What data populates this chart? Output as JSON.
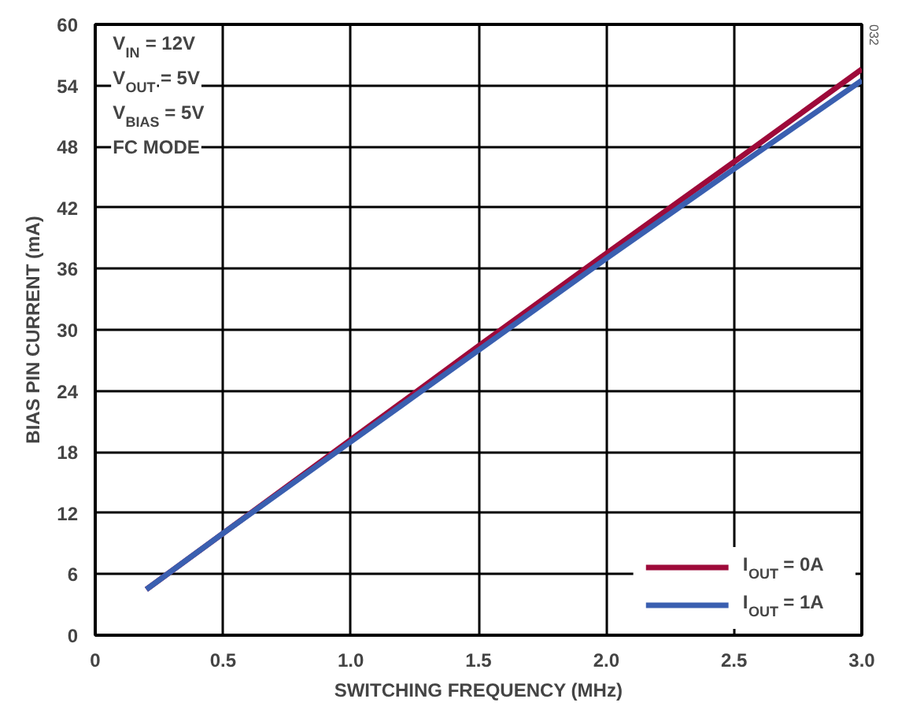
{
  "chart_data": {
    "type": "line",
    "xlabel": "SWITCHING FREQUENCY (MHz)",
    "ylabel": "BIAS PIN CURRENT (mA)",
    "x": [
      0.2,
      0.5,
      1.0,
      1.5,
      2.0,
      2.5,
      3.0
    ],
    "series": [
      {
        "name": "I$_{OUT}$ = 0A",
        "color": "#9e0a3a",
        "values": [
          4.5,
          10,
          19.2,
          28.4,
          37.5,
          46.5,
          55.6
        ]
      },
      {
        "name": "I$_{OUT}$ = 1A",
        "color": "#3a5fb0",
        "values": [
          4.5,
          10,
          19,
          28,
          37,
          45.8,
          54.5
        ]
      }
    ],
    "xlim": [
      0,
      3.0
    ],
    "ylim": [
      0,
      60
    ],
    "xticks": [
      0,
      0.5,
      {
        "value": 1.0,
        "label": "1.0"
      },
      1.5,
      {
        "value": 2.0,
        "label": "2.0"
      },
      2.5,
      {
        "value": 3.0,
        "label": "3.0"
      }
    ],
    "yticks": [
      0,
      6,
      12,
      18,
      24,
      30,
      36,
      42,
      48,
      54,
      60
    ],
    "annotations": [
      "V$_{IN}$ = 12V",
      "V$_{OUT}$ = 5V",
      "V$_{BIAS}$ = 5V",
      "FC MODE",
      "032"
    ],
    "grid": true,
    "legend": "bottom right",
    "line_style": "solid",
    "marker": "none"
  }
}
